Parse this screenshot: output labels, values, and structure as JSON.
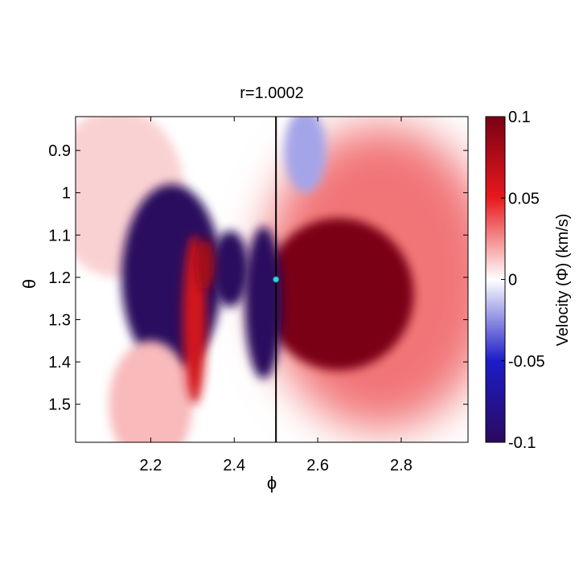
{
  "chart_data": {
    "type": "heatmap",
    "title": "r=1.0002",
    "xlabel": "ϕ",
    "ylabel": "θ",
    "xlim": [
      2.02,
      2.96
    ],
    "ylim": [
      0.82,
      1.59
    ],
    "y_reversed": true,
    "x_ticks": [
      2.2,
      2.4,
      2.6,
      2.8
    ],
    "x_tick_labels": [
      "2.2",
      "2.4",
      "2.6",
      "2.8"
    ],
    "y_ticks": [
      0.9,
      1.0,
      1.1,
      1.2,
      1.3,
      1.4,
      1.5
    ],
    "y_tick_labels": [
      "0.9",
      "1",
      "1.1",
      "1.2",
      "1.3",
      "1.4",
      "1.5"
    ],
    "vertical_line_x": 2.5,
    "marker_point": {
      "x": 2.5,
      "y": 1.205,
      "color": "#33d6e0"
    },
    "colorbar": {
      "label": "Velocity (Φ) (km/s)",
      "range": [
        -0.1,
        0.1
      ],
      "ticks": [
        -0.1,
        -0.05,
        0,
        0.05,
        0.1
      ],
      "tick_labels": [
        "-0.1",
        "-0.05",
        "0",
        "0.05",
        "0.1"
      ],
      "colormap": [
        "#2b0a5e",
        "#1c1cc8",
        "#ffffff",
        "#e8191d",
        "#7a0015"
      ]
    },
    "regions": [
      {
        "x": 2.25,
        "y": 1.2,
        "rx": 0.12,
        "ry": 0.22,
        "value": -0.2
      },
      {
        "x": 2.305,
        "y": 1.3,
        "rx": 0.028,
        "ry": 0.2,
        "value": 0.06
      },
      {
        "x": 2.33,
        "y": 1.17,
        "rx": 0.022,
        "ry": 0.06,
        "value": 0.08
      },
      {
        "x": 2.39,
        "y": 1.18,
        "rx": 0.045,
        "ry": 0.09,
        "value": -0.15
      },
      {
        "x": 2.47,
        "y": 1.26,
        "rx": 0.045,
        "ry": 0.18,
        "value": -0.15
      },
      {
        "x": 2.65,
        "y": 1.24,
        "rx": 0.18,
        "ry": 0.18,
        "value": 0.16
      },
      {
        "x": 2.75,
        "y": 1.2,
        "rx": 0.28,
        "ry": 0.36,
        "value": 0.03
      },
      {
        "x": 2.12,
        "y": 1.0,
        "rx": 0.16,
        "ry": 0.2,
        "value": 0.01
      },
      {
        "x": 2.2,
        "y": 1.5,
        "rx": 0.1,
        "ry": 0.15,
        "value": 0.015
      },
      {
        "x": 2.57,
        "y": 0.9,
        "rx": 0.05,
        "ry": 0.1,
        "value": -0.02
      }
    ]
  }
}
